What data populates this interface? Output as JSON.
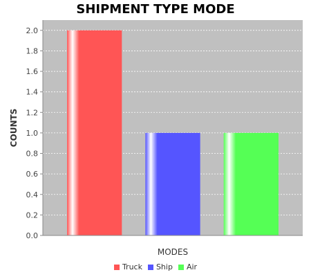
{
  "chart_data": {
    "type": "bar",
    "title": "SHIPMENT TYPE MODE",
    "xlabel": "MODES",
    "ylabel": "COUNTS",
    "ylim": [
      0,
      2.1
    ],
    "yticks": [
      0.0,
      0.2,
      0.4,
      0.6,
      0.8,
      1.0,
      1.2,
      1.4,
      1.6,
      1.8,
      2.0
    ],
    "ytick_labels": [
      "0.0",
      "0.2",
      "0.4",
      "0.6",
      "0.8",
      "1.0",
      "1.2",
      "1.4",
      "1.6",
      "1.8",
      "2.0"
    ],
    "grid": true,
    "legend_position": "bottom",
    "series": [
      {
        "name": "Truck",
        "value": 2.0,
        "color": "#ff5555"
      },
      {
        "name": "Ship",
        "value": 1.0,
        "color": "#5555ff"
      },
      {
        "name": "Air",
        "value": 1.0,
        "color": "#55ff55"
      }
    ]
  }
}
